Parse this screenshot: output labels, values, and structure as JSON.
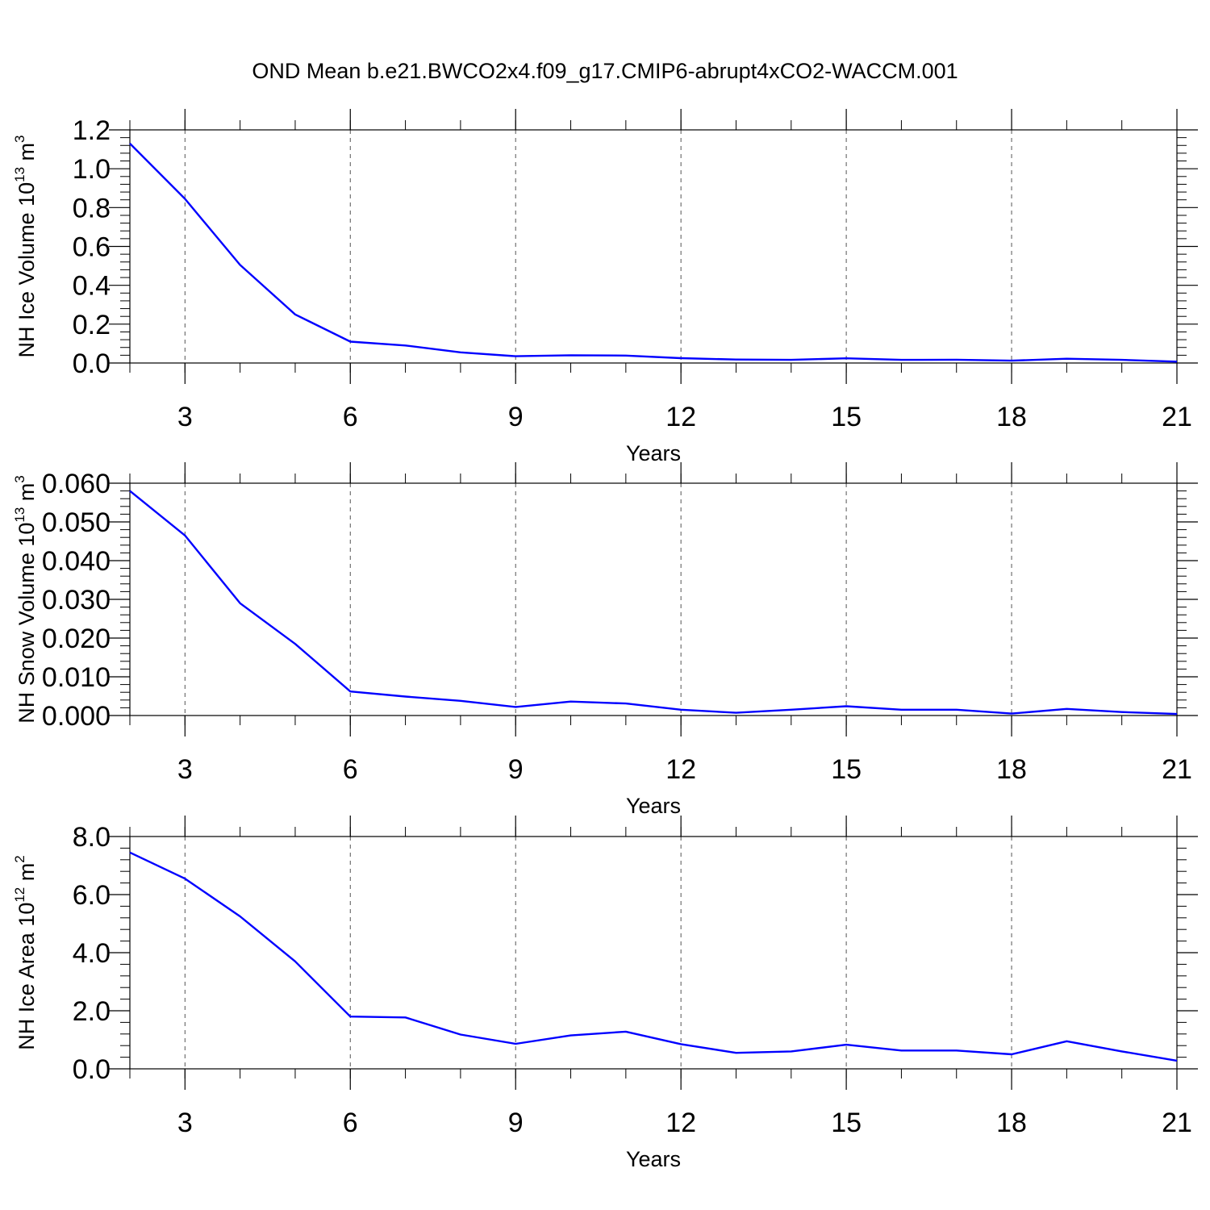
{
  "title": "OND Mean b.e21.BWCO2x4.f09_g17.CMIP6-abrupt4xCO2-WACCM.001",
  "chart_data": [
    {
      "type": "line",
      "xlabel": "Years",
      "ylabel": {
        "prefix": "NH Ice Volume 10",
        "exp": "13",
        "unit": " m",
        "unit_exp": "3"
      },
      "xlim": [
        2,
        21
      ],
      "ylim": [
        0,
        1.2
      ],
      "x_ticks": [
        3,
        6,
        9,
        12,
        15,
        18,
        21
      ],
      "y_ticks": [
        0,
        0.2,
        0.4,
        0.6,
        0.8,
        1.0,
        1.2
      ],
      "y_tick_labels": [
        "0.0",
        "0.2",
        "0.4",
        "0.6",
        "0.8",
        "1.0",
        "1.2"
      ],
      "line_color": "#0000ff",
      "x": [
        2,
        3,
        4,
        5,
        6,
        7,
        8,
        9,
        10,
        11,
        12,
        13,
        14,
        15,
        16,
        17,
        18,
        19,
        20,
        21
      ],
      "y": [
        1.13,
        0.845,
        0.505,
        0.25,
        0.11,
        0.09,
        0.055,
        0.035,
        0.04,
        0.038,
        0.025,
        0.018,
        0.016,
        0.024,
        0.016,
        0.017,
        0.012,
        0.022,
        0.016,
        0.007
      ]
    },
    {
      "type": "line",
      "xlabel": "Years",
      "ylabel": {
        "prefix": "NH Snow Volume 10",
        "exp": "13",
        "unit": " m",
        "unit_exp": "3"
      },
      "xlim": [
        2,
        21
      ],
      "ylim": [
        0,
        0.06
      ],
      "x_ticks": [
        3,
        6,
        9,
        12,
        15,
        18,
        21
      ],
      "y_ticks": [
        0,
        0.01,
        0.02,
        0.03,
        0.04,
        0.05,
        0.06
      ],
      "y_tick_labels": [
        "0.000",
        "0.010",
        "0.020",
        "0.030",
        "0.040",
        "0.050",
        "0.060"
      ],
      "line_color": "#0000ff",
      "x": [
        2,
        3,
        4,
        5,
        6,
        7,
        8,
        9,
        10,
        11,
        12,
        13,
        14,
        15,
        16,
        17,
        18,
        19,
        20,
        21
      ],
      "y": [
        0.058,
        0.0465,
        0.029,
        0.0185,
        0.0062,
        0.0049,
        0.0038,
        0.0022,
        0.0036,
        0.0031,
        0.0015,
        0.0007,
        0.0015,
        0.0024,
        0.0015,
        0.0015,
        0.0005,
        0.0017,
        0.0009,
        0.0004
      ]
    },
    {
      "type": "line",
      "xlabel": "Years",
      "ylabel": {
        "prefix": "NH Ice Area 10",
        "exp": "12",
        "unit": " m",
        "unit_exp": "2"
      },
      "xlim": [
        2,
        21
      ],
      "ylim": [
        0,
        8
      ],
      "x_ticks": [
        3,
        6,
        9,
        12,
        15,
        18,
        21
      ],
      "y_ticks": [
        0,
        2,
        4,
        6,
        8
      ],
      "y_tick_labels": [
        "0.0",
        "2.0",
        "4.0",
        "6.0",
        "8.0"
      ],
      "line_color": "#0000ff",
      "x": [
        2,
        3,
        4,
        5,
        6,
        7,
        8,
        9,
        10,
        11,
        12,
        13,
        14,
        15,
        16,
        17,
        18,
        19,
        20,
        21
      ],
      "y": [
        7.45,
        6.55,
        5.25,
        3.7,
        1.8,
        1.77,
        1.18,
        0.86,
        1.15,
        1.28,
        0.85,
        0.55,
        0.6,
        0.83,
        0.63,
        0.63,
        0.5,
        0.95,
        0.6,
        0.28
      ]
    }
  ]
}
